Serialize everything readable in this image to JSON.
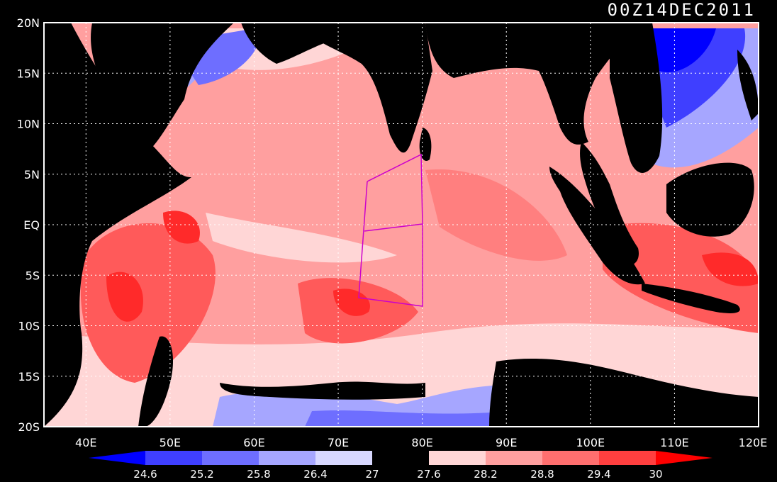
{
  "title": "00Z14DEC2011",
  "lat_ticks": [
    "20N",
    "15N",
    "10N",
    "5N",
    "EQ",
    "5S",
    "10S",
    "15S",
    "20S"
  ],
  "lon_ticks": [
    "40E",
    "50E",
    "60E",
    "70E",
    "80E",
    "90E",
    "100E",
    "110E",
    "120E"
  ],
  "colorbar": {
    "levels": [
      "24.6",
      "25.2",
      "25.8",
      "26.4",
      "27",
      "27.6",
      "28.2",
      "28.8",
      "29.4",
      "30"
    ],
    "colors": [
      "#0000ff",
      "#3f3fff",
      "#6e6eff",
      "#a6a6ff",
      "#d8d8ff",
      "#000000",
      "#ffd6d6",
      "#ff9f9f",
      "#ff6f6f",
      "#ff3f3f",
      "#ff0000"
    ]
  },
  "palette": {
    "land": "#000000",
    "cool_blue": "#6e6eff",
    "light_blue": "#d8d8ff",
    "pale_pink": "#ffd6d6",
    "pink": "#ff9f9f",
    "red": "#ff5a5a",
    "deep_red": "#ff2a2a",
    "box_line": "#cc00cc",
    "grid": "#ffffff"
  }
}
